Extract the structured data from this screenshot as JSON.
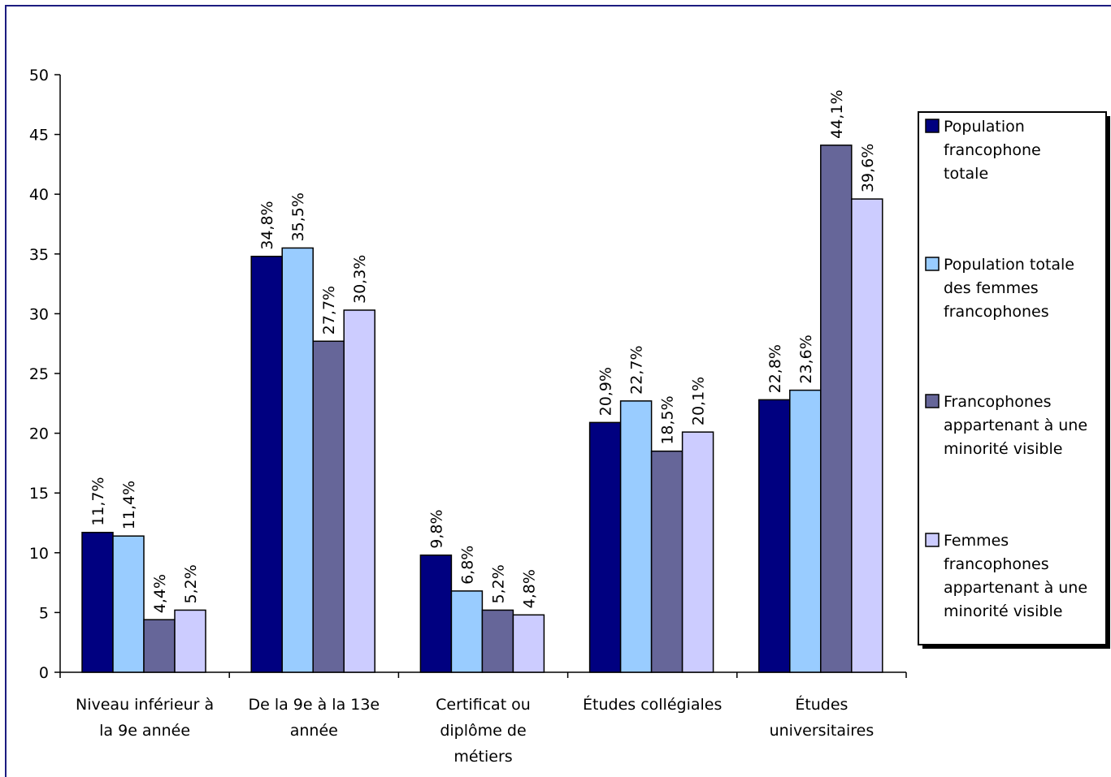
{
  "chart_data": {
    "type": "bar",
    "title": "",
    "xlabel": "",
    "ylabel": "",
    "ylim": [
      0,
      50
    ],
    "yticks": [
      0,
      5,
      10,
      15,
      20,
      25,
      30,
      35,
      40,
      45,
      50
    ],
    "grid": false,
    "legend_position": "right",
    "categories": [
      [
        "Niveau inférieur à",
        "la 9e année"
      ],
      [
        "De la 9e à la 13e",
        "année"
      ],
      [
        "Certificat ou",
        "diplôme de",
        "métiers"
      ],
      [
        "Études collégiales"
      ],
      [
        "Études",
        "universitaires"
      ]
    ],
    "series": [
      {
        "name": [
          "Population",
          "francophone",
          "totale"
        ],
        "color": "#000080",
        "values": [
          11.7,
          34.8,
          9.8,
          20.9,
          22.8
        ],
        "labels": [
          "11,7%",
          "34,8%",
          "9,8%",
          "20,9%",
          "22,8%"
        ]
      },
      {
        "name": [
          "Population totale",
          "des femmes",
          "francophones"
        ],
        "color": "#99ccff",
        "values": [
          11.4,
          35.5,
          6.8,
          22.7,
          23.6
        ],
        "labels": [
          "11,4%",
          "35,5%",
          "6,8%",
          "22,7%",
          "23,6%"
        ]
      },
      {
        "name": [
          "Francophones",
          "appartenant à une",
          "minorité visible"
        ],
        "color": "#666699",
        "values": [
          4.4,
          27.7,
          5.2,
          18.5,
          44.1
        ],
        "labels": [
          "4,4%",
          "27,7%",
          "5,2%",
          "18,5%",
          "44,1%"
        ]
      },
      {
        "name": [
          "Femmes",
          "francophones",
          "appartenant à une",
          "minorité visible"
        ],
        "color": "#ccccff",
        "values": [
          5.2,
          30.3,
          4.8,
          20.1,
          39.6
        ],
        "labels": [
          "5,2%",
          "30,3%",
          "4,8%",
          "20,1%",
          "39,6%"
        ]
      }
    ]
  }
}
